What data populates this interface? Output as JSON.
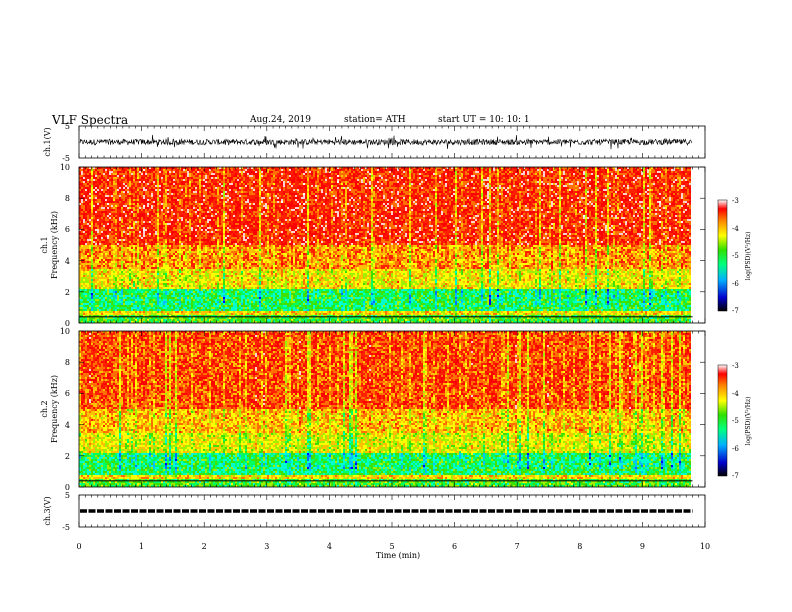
{
  "header": {
    "title": "VLF  Spectra",
    "date": "Aug.24, 2019",
    "station": "station= ATH",
    "start": "start  UT  =    10: 10: 1"
  },
  "chart_data": [
    {
      "type": "line",
      "panel": "ch1-waveform",
      "ylabel": "ch.1(V)",
      "xlim": [
        0,
        10
      ],
      "ylim": [
        -5,
        5
      ],
      "yticks": [
        "5",
        "-5"
      ],
      "description_series": "dense noisy waveform, amplitude about -2 to 2 V"
    },
    {
      "type": "heatmap",
      "panel": "ch1-spectrogram",
      "ylabel_line1": "ch.1",
      "ylabel_line2": "Frequency  (kHz)",
      "xlim": [
        0,
        10
      ],
      "ylim": [
        0,
        10
      ],
      "yticks": [
        "0",
        "2",
        "4",
        "6",
        "8",
        "10"
      ],
      "data_xmax": 9.8,
      "colorbar": {
        "label": "log(PSD)(V²/Hz)",
        "range": [
          -7,
          -3
        ],
        "ticks": [
          "-3",
          "-4",
          "-5",
          "-6",
          "-7"
        ]
      }
    },
    {
      "type": "heatmap",
      "panel": "ch2-spectrogram",
      "ylabel_line1": "ch.2",
      "ylabel_line2": "Frequency  (kHz)",
      "xlim": [
        0,
        10
      ],
      "ylim": [
        0,
        10
      ],
      "yticks": [
        "0",
        "2",
        "4",
        "6",
        "8",
        "10"
      ],
      "data_xmax": 9.8,
      "colorbar": {
        "label": "log(PSD)(V²/Hz)",
        "range": [
          -7,
          -3
        ],
        "ticks": [
          "-3",
          "-4",
          "-5",
          "-6",
          "-7"
        ]
      }
    },
    {
      "type": "line",
      "panel": "ch3-waveform",
      "ylabel": "ch.3(V)",
      "xlim": [
        0,
        10
      ],
      "ylim": [
        -5,
        5
      ],
      "yticks": [
        "5",
        "-5"
      ],
      "level": 0,
      "xlabel": "Time  (min)",
      "xticks": [
        "0",
        "1",
        "2",
        "3",
        "4",
        "5",
        "6",
        "7",
        "8",
        "9",
        "10"
      ]
    }
  ]
}
